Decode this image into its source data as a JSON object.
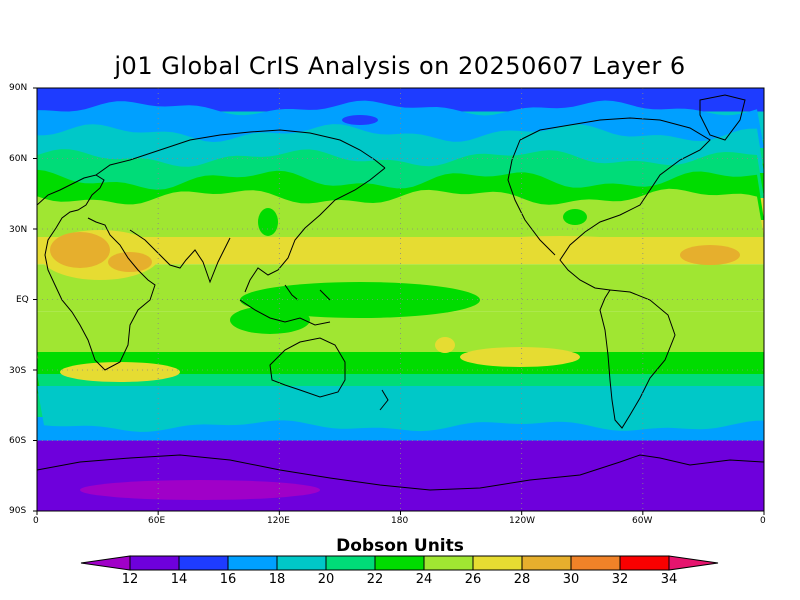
{
  "title": "j01 Global CrIS Analysis on 20250607 Layer 6",
  "lat_labels": [
    "90N",
    "60N",
    "30N",
    "EQ",
    "30S",
    "60S",
    "90S"
  ],
  "lon_labels": [
    "0",
    "60E",
    "120E",
    "180",
    "120W",
    "60W",
    "0"
  ],
  "colorbar": {
    "title": "Dobson Units",
    "ticks": [
      "12",
      "14",
      "16",
      "18",
      "20",
      "22",
      "24",
      "26",
      "28",
      "30",
      "32",
      "34"
    ],
    "colors": [
      "#a000c8",
      "#6e00dc",
      "#1e3cff",
      "#00a0ff",
      "#00c8c8",
      "#00dc78",
      "#00dc00",
      "#a0e632",
      "#e6dc32",
      "#e6af2d",
      "#f08228",
      "#fa0000",
      "#e6146e"
    ]
  },
  "chart_data": {
    "type": "heatmap",
    "title": "j01 Global CrIS Analysis on 20250607 Layer 6",
    "units": "Dobson Units",
    "x_range": [
      "0",
      "0"
    ],
    "y_range": [
      "90S",
      "90N"
    ],
    "value_range": [
      12,
      34
    ],
    "zonal_bands": [
      {
        "lat_range": [
          "90N",
          "80N"
        ],
        "value": 15
      },
      {
        "lat_range": [
          "80N",
          "68N"
        ],
        "value": 19
      },
      {
        "lat_range": [
          "68N",
          "58N"
        ],
        "value": 21
      },
      {
        "lat_range": [
          "58N",
          "45N"
        ],
        "value": 23
      },
      {
        "lat_range": [
          "45N",
          "15N"
        ],
        "value": 26
      },
      {
        "lat_range": [
          "15N",
          "5S"
        ],
        "value": 25
      },
      {
        "lat_range": [
          "5S",
          "25S"
        ],
        "value": 25
      },
      {
        "lat_range": [
          "25S",
          "40S"
        ],
        "value": 23
      },
      {
        "lat_range": [
          "40S",
          "50S"
        ],
        "value": 21
      },
      {
        "lat_range": [
          "50S",
          "60S"
        ],
        "value": 17
      },
      {
        "lat_range": [
          "60S",
          "90S"
        ],
        "value": 13
      }
    ]
  }
}
